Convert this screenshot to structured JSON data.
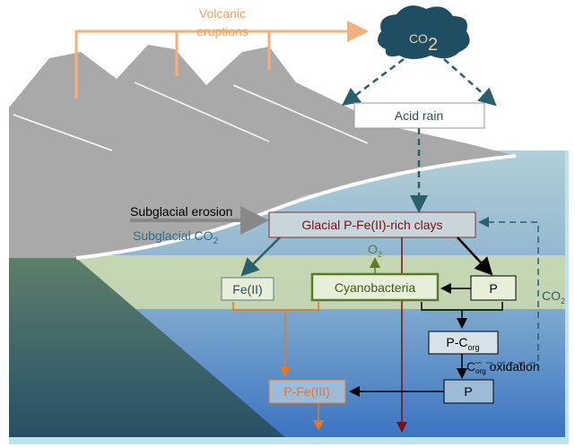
{
  "labels": {
    "volcanic": [
      "Volcanic",
      "eruptions"
    ],
    "co2_cloud": {
      "text": "CO",
      "sub": "2"
    },
    "acid_rain": "Acid rain",
    "subglacial_erosion": "Subglacial erosion",
    "subglacial_co2": {
      "text": "Subglacial CO",
      "sub": "2"
    },
    "clays": "Glacial P-Fe(II)-rich clays",
    "o2": {
      "text": "O",
      "sub": "2"
    },
    "fe2": "Fe(II)",
    "cyano": "Cyanobacteria",
    "p_top": "P",
    "co2_side": {
      "text": "CO",
      "sub": "2"
    },
    "p_corg": {
      "text": "P-C",
      "sub": "org"
    },
    "corg_ox": {
      "text": "C",
      "sub": "org",
      "rest": " oxidation"
    },
    "p_bottom": "P",
    "p_fe3": "P-Fe(III)"
  }
}
